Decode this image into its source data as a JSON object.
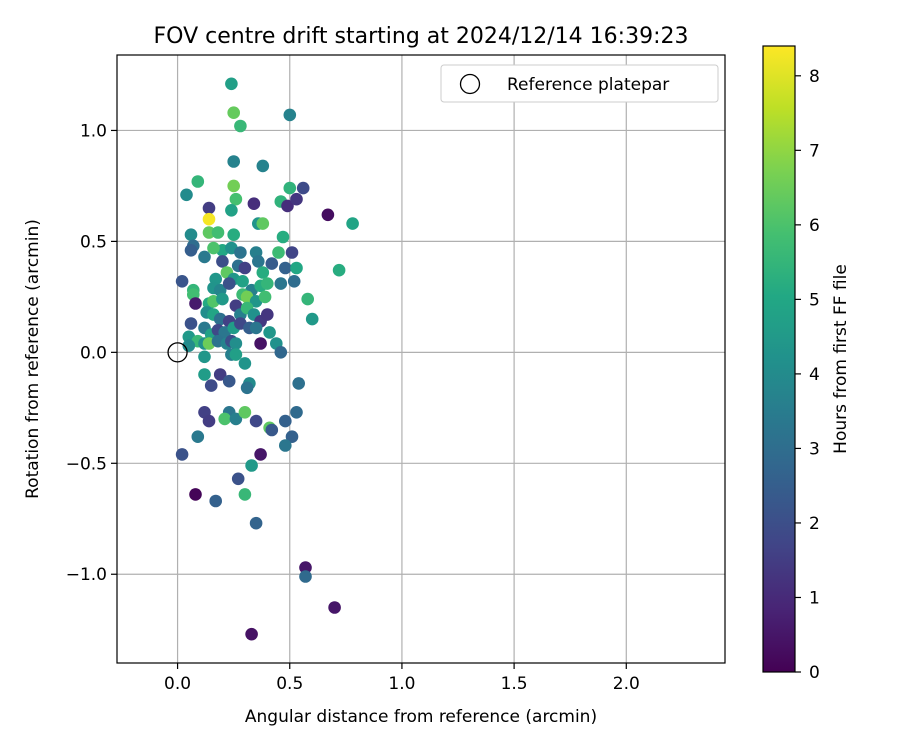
{
  "chart_data": {
    "type": "scatter",
    "title": "FOV centre drift starting at 2024/12/14 16:39:23",
    "xlabel": "Angular distance from reference (arcmin)",
    "ylabel": "Rotation from reference (arcmin)",
    "xlim": [
      -0.27,
      2.44
    ],
    "ylim": [
      -1.4,
      1.34
    ],
    "xticks": [
      0.0,
      0.5,
      1.0,
      1.5,
      2.0
    ],
    "xtick_labels": [
      "0.0",
      "0.5",
      "1.0",
      "1.5",
      "2.0"
    ],
    "yticks": [
      -1.0,
      -0.5,
      0.0,
      0.5,
      1.0
    ],
    "ytick_labels": [
      "−1.0",
      "−0.5",
      "0.0",
      "0.5",
      "1.0"
    ],
    "grid": true,
    "legend": {
      "placement": "upper-right",
      "entries": [
        {
          "label": "Reference platepar",
          "marker": "open-circle"
        }
      ]
    },
    "reference_point": {
      "x": 0.0,
      "y": 0.0
    },
    "colorbar": {
      "label": "Hours from first FF file",
      "range": [
        0,
        8.4
      ],
      "ticks": [
        0,
        1,
        2,
        3,
        4,
        5,
        6,
        7,
        8
      ],
      "tick_labels": [
        "0",
        "1",
        "2",
        "3",
        "4",
        "5",
        "6",
        "7",
        "8"
      ],
      "colormap": "viridis"
    },
    "series": [
      {
        "marker": "filled-circle",
        "points": [
          [
            0.24,
            1.21,
            4.7
          ],
          [
            0.25,
            1.08,
            6.4
          ],
          [
            0.28,
            1.02,
            5.6
          ],
          [
            0.5,
            1.07,
            3.7
          ],
          [
            0.25,
            0.86,
            3.7
          ],
          [
            0.38,
            0.84,
            3.7
          ],
          [
            0.09,
            0.77,
            5.5
          ],
          [
            0.25,
            0.75,
            6.6
          ],
          [
            0.5,
            0.74,
            5.4
          ],
          [
            0.56,
            0.74,
            1.9
          ],
          [
            0.04,
            0.71,
            4.0
          ],
          [
            0.26,
            0.69,
            5.9
          ],
          [
            0.24,
            0.64,
            4.8
          ],
          [
            0.14,
            0.65,
            1.5
          ],
          [
            0.34,
            0.67,
            1.1
          ],
          [
            0.46,
            0.68,
            5.4
          ],
          [
            0.49,
            0.66,
            1.1
          ],
          [
            0.53,
            0.69,
            1.3
          ],
          [
            0.67,
            0.62,
            0.3
          ],
          [
            0.14,
            0.6,
            8.3
          ],
          [
            0.14,
            0.54,
            6.3
          ],
          [
            0.18,
            0.54,
            5.8
          ],
          [
            0.25,
            0.53,
            5.2
          ],
          [
            0.36,
            0.58,
            4.3
          ],
          [
            0.38,
            0.58,
            6.3
          ],
          [
            0.06,
            0.53,
            4.0
          ],
          [
            0.78,
            0.58,
            4.9
          ],
          [
            0.07,
            0.48,
            3.0
          ],
          [
            0.06,
            0.46,
            2.5
          ],
          [
            0.12,
            0.43,
            3.4
          ],
          [
            0.2,
            0.46,
            5.0
          ],
          [
            0.24,
            0.47,
            4.2
          ],
          [
            0.28,
            0.45,
            3.2
          ],
          [
            0.35,
            0.45,
            3.6
          ],
          [
            0.47,
            0.52,
            5.2
          ],
          [
            0.51,
            0.45,
            1.7
          ],
          [
            0.16,
            0.47,
            6.0
          ],
          [
            0.2,
            0.41,
            2.0
          ],
          [
            0.22,
            0.36,
            6.3
          ],
          [
            0.25,
            0.33,
            4.4
          ],
          [
            0.27,
            0.39,
            3.1
          ],
          [
            0.3,
            0.38,
            1.6
          ],
          [
            0.36,
            0.41,
            3.3
          ],
          [
            0.38,
            0.36,
            5.2
          ],
          [
            0.42,
            0.4,
            2.4
          ],
          [
            0.45,
            0.45,
            5.7
          ],
          [
            0.48,
            0.38,
            2.6
          ],
          [
            0.53,
            0.38,
            5.0
          ],
          [
            0.72,
            0.37,
            5.2
          ],
          [
            0.02,
            0.32,
            2.2
          ],
          [
            0.07,
            0.28,
            5.5
          ],
          [
            0.07,
            0.26,
            5.8
          ],
          [
            0.17,
            0.33,
            4.4
          ],
          [
            0.16,
            0.29,
            4.3
          ],
          [
            0.19,
            0.28,
            3.8
          ],
          [
            0.23,
            0.31,
            2.1
          ],
          [
            0.29,
            0.32,
            4.8
          ],
          [
            0.33,
            0.28,
            3.6
          ],
          [
            0.37,
            0.3,
            5.2
          ],
          [
            0.4,
            0.31,
            5.5
          ],
          [
            0.46,
            0.31,
            3.3
          ],
          [
            0.52,
            0.32,
            3.0
          ],
          [
            0.08,
            0.22,
            0.6
          ],
          [
            0.14,
            0.22,
            5.1
          ],
          [
            0.16,
            0.23,
            6.1
          ],
          [
            0.2,
            0.24,
            4.5
          ],
          [
            0.26,
            0.21,
            1.5
          ],
          [
            0.29,
            0.26,
            5.7
          ],
          [
            0.31,
            0.25,
            6.6
          ],
          [
            0.35,
            0.23,
            4.4
          ],
          [
            0.39,
            0.25,
            5.8
          ],
          [
            0.58,
            0.24,
            5.5
          ],
          [
            0.13,
            0.18,
            4.1
          ],
          [
            0.16,
            0.17,
            4.9
          ],
          [
            0.19,
            0.15,
            3.1
          ],
          [
            0.23,
            0.14,
            1.6
          ],
          [
            0.28,
            0.17,
            3.6
          ],
          [
            0.31,
            0.2,
            5.6
          ],
          [
            0.34,
            0.17,
            4.2
          ],
          [
            0.37,
            0.14,
            1.4
          ],
          [
            0.4,
            0.17,
            1.3
          ],
          [
            0.6,
            0.15,
            4.5
          ],
          [
            0.06,
            0.13,
            2.1
          ],
          [
            0.12,
            0.11,
            3.4
          ],
          [
            0.15,
            0.08,
            4.8
          ],
          [
            0.18,
            0.1,
            1.8
          ],
          [
            0.21,
            0.09,
            3.3
          ],
          [
            0.25,
            0.11,
            4.6
          ],
          [
            0.28,
            0.13,
            1.8
          ],
          [
            0.32,
            0.11,
            2.5
          ],
          [
            0.35,
            0.11,
            3.3
          ],
          [
            0.41,
            0.09,
            4.4
          ],
          [
            0.05,
            0.07,
            4.5
          ],
          [
            0.09,
            0.05,
            5.6
          ],
          [
            0.12,
            0.04,
            4.2
          ],
          [
            0.14,
            0.04,
            6.5
          ],
          [
            0.18,
            0.05,
            3.2
          ],
          [
            0.22,
            0.04,
            3.7
          ],
          [
            0.24,
            0.05,
            2.0
          ],
          [
            0.26,
            0.04,
            4.1
          ],
          [
            0.37,
            0.04,
            0.4
          ],
          [
            0.44,
            0.04,
            4.2
          ],
          [
            0.46,
            0.0,
            2.8
          ],
          [
            0.05,
            0.03,
            4.0
          ],
          [
            0.12,
            -0.02,
            4.4
          ],
          [
            0.24,
            -0.01,
            3.6
          ],
          [
            0.26,
            -0.01,
            4.7
          ],
          [
            0.3,
            -0.05,
            4.3
          ],
          [
            0.12,
            -0.1,
            4.6
          ],
          [
            0.19,
            -0.1,
            1.5
          ],
          [
            0.15,
            -0.15,
            1.9
          ],
          [
            0.23,
            -0.13,
            2.3
          ],
          [
            0.32,
            -0.14,
            4.0
          ],
          [
            0.31,
            -0.16,
            3.2
          ],
          [
            0.54,
            -0.14,
            3.1
          ],
          [
            0.12,
            -0.27,
            1.6
          ],
          [
            0.23,
            -0.27,
            3.3
          ],
          [
            0.14,
            -0.31,
            1.5
          ],
          [
            0.21,
            -0.3,
            6.0
          ],
          [
            0.26,
            -0.3,
            3.6
          ],
          [
            0.3,
            -0.27,
            6.3
          ],
          [
            0.35,
            -0.31,
            1.8
          ],
          [
            0.41,
            -0.34,
            6.3
          ],
          [
            0.42,
            -0.35,
            2.3
          ],
          [
            0.48,
            -0.31,
            2.6
          ],
          [
            0.53,
            -0.27,
            2.9
          ],
          [
            0.51,
            -0.38,
            2.6
          ],
          [
            0.09,
            -0.38,
            3.4
          ],
          [
            0.02,
            -0.46,
            2.1
          ],
          [
            0.37,
            -0.46,
            0.5
          ],
          [
            0.48,
            -0.42,
            3.3
          ],
          [
            0.33,
            -0.51,
            4.5
          ],
          [
            0.08,
            -0.64,
            0.1
          ],
          [
            0.27,
            -0.57,
            2.1
          ],
          [
            0.17,
            -0.67,
            2.6
          ],
          [
            0.3,
            -0.64,
            5.6
          ],
          [
            0.35,
            -0.77,
            2.7
          ],
          [
            0.57,
            -0.97,
            0.5
          ],
          [
            0.57,
            -1.01,
            2.9
          ],
          [
            0.7,
            -1.15,
            0.5
          ],
          [
            0.33,
            -1.27,
            0.4
          ]
        ]
      }
    ]
  }
}
